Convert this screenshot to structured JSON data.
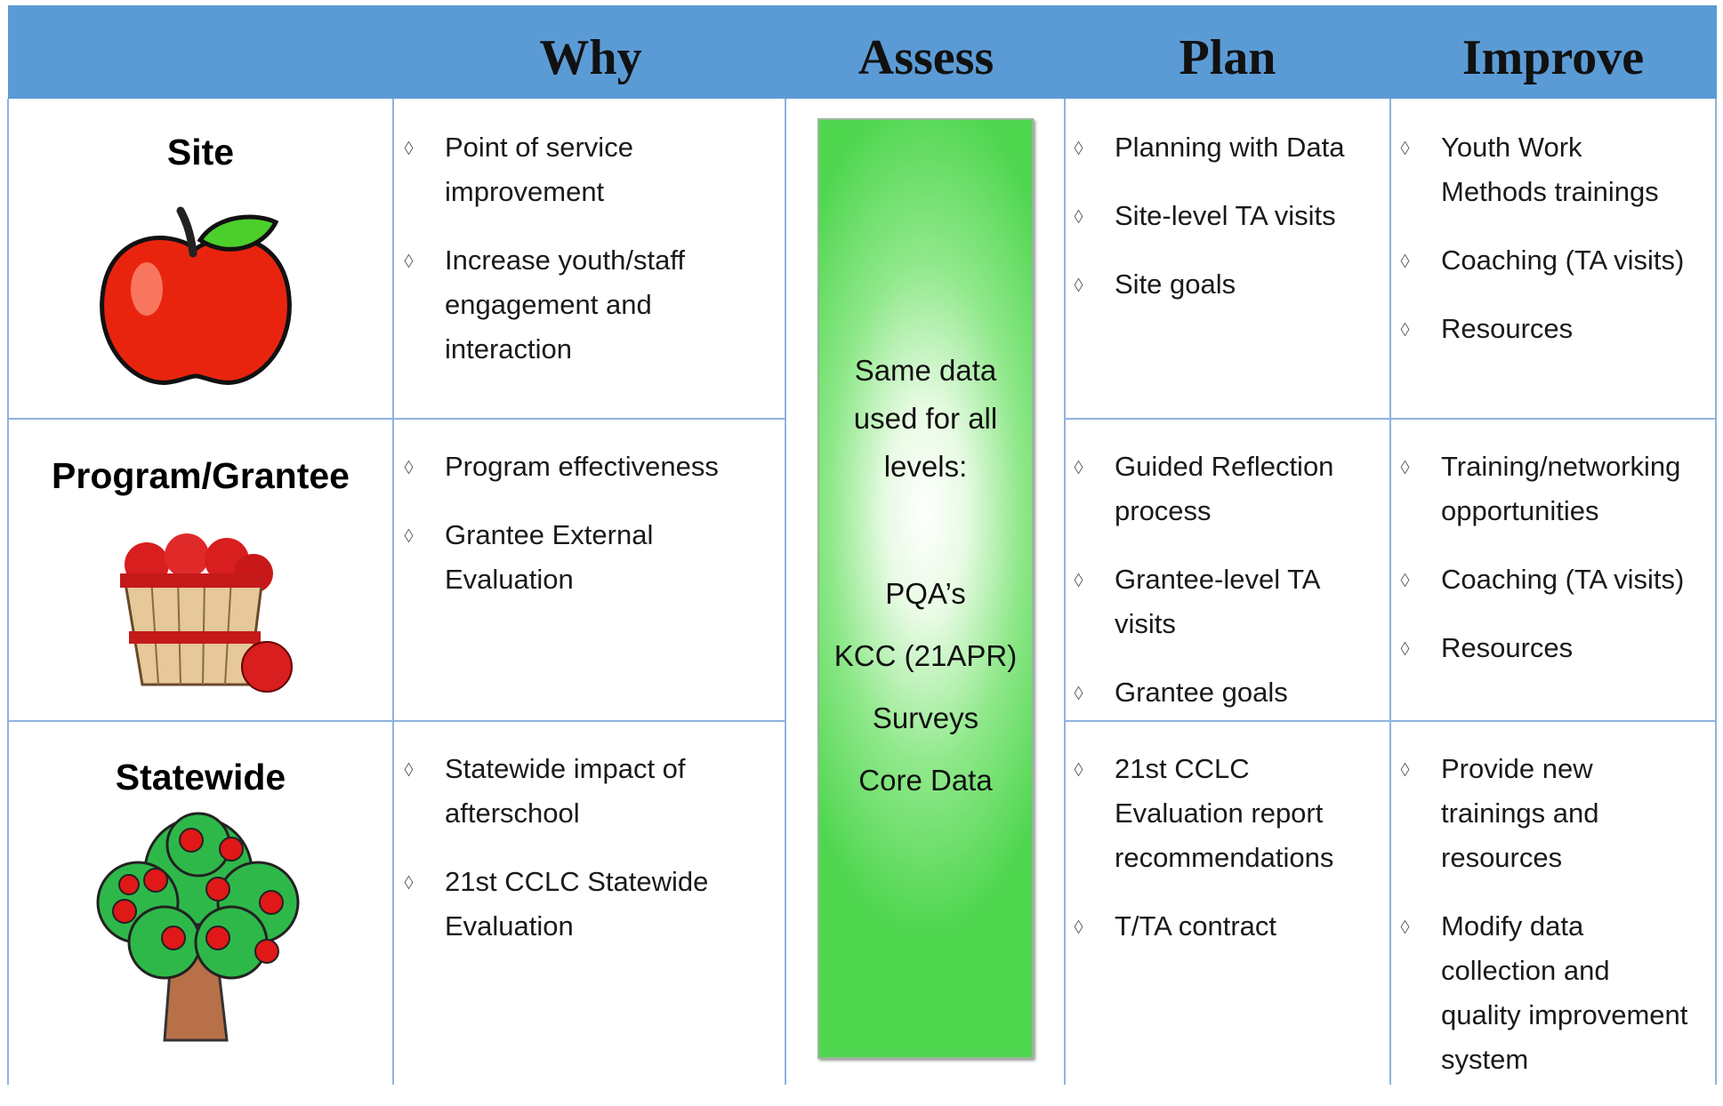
{
  "header": {
    "columns": [
      "Why",
      "Assess",
      "Plan",
      "Improve"
    ]
  },
  "rows": [
    {
      "label": "Site",
      "why": [
        "Point of service\nimprovement",
        "Increase youth/staff\nengagement and\ninteraction"
      ],
      "plan": [
        "Planning with Data",
        "Site-level TA visits",
        "Site goals"
      ],
      "improve": [
        "Youth Work\nMethods trainings",
        "Coaching (TA visits)",
        "Resources"
      ]
    },
    {
      "label": "Program/Grantee",
      "why": [
        "Program effectiveness",
        "Grantee External\nEvaluation"
      ],
      "plan": [
        "Guided Reflection\nprocess",
        "Grantee-level TA\nvisits",
        "Grantee goals"
      ],
      "improve": [
        "Training/networking\nopportunities",
        "Coaching (TA visits)",
        "Resources"
      ]
    },
    {
      "label": "Statewide",
      "why": [
        "Statewide impact of\nafterschool",
        "21st CCLC Statewide\nEvaluation"
      ],
      "plan": [
        "21st CCLC\nEvaluation report\nrecommendations",
        "T/TA contract"
      ],
      "improve": [
        "Provide new\ntrainings and\nresources",
        "Modify data\ncollection and\nquality improvement\nsystem"
      ]
    }
  ],
  "assess": {
    "intro": "Same data\nused for all\nlevels:",
    "items": [
      "PQA’s",
      "KCC (21APR)",
      "Surveys",
      "Core Data"
    ]
  }
}
